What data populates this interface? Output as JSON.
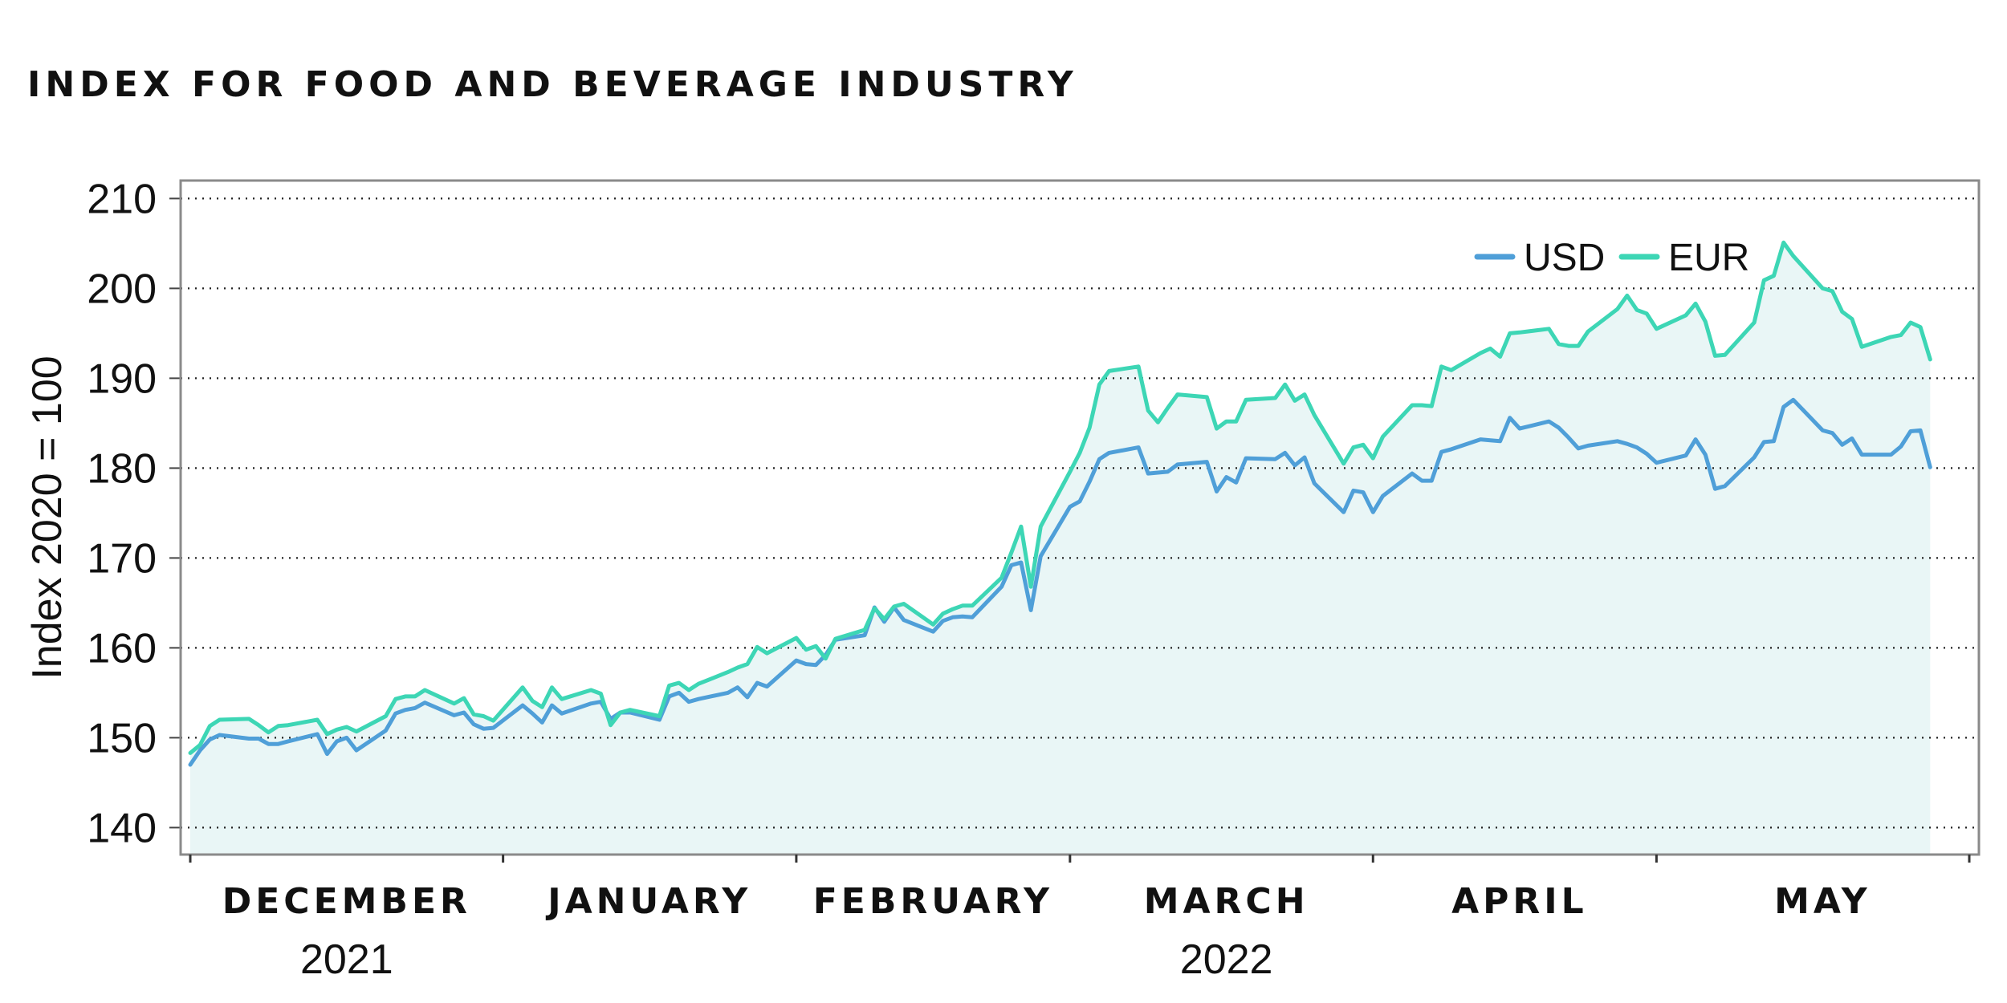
{
  "title": "INDEX FOR FOOD AND BEVERAGE INDUSTRY",
  "colors": {
    "USD": "#4f9fd8",
    "EUR": "#3dd6b5",
    "fill": "#e9f6f6"
  },
  "chart_data": {
    "type": "line",
    "title": "INDEX FOR FOOD AND BEVERAGE INDUSTRY",
    "ylabel": "Index 2020 = 100",
    "xlabel": "",
    "ylim": [
      137,
      212
    ],
    "yticks": [
      140,
      150,
      160,
      170,
      180,
      190,
      200,
      210
    ],
    "grid": true,
    "legend_position": "top-right",
    "x_start": "2021-11-30",
    "x_end": "2022-05-31",
    "month_labels": [
      {
        "label": "DECEMBER",
        "date": "2021-12-16"
      },
      {
        "label": "JANUARY",
        "date": "2022-01-16"
      },
      {
        "label": "FEBRUARY",
        "date": "2022-02-14"
      },
      {
        "label": "MARCH",
        "date": "2022-03-16"
      },
      {
        "label": "APRIL",
        "date": "2022-04-15"
      },
      {
        "label": "MAY",
        "date": "2022-05-16"
      }
    ],
    "month_boundaries": [
      "2021-11-30",
      "2022-01-01",
      "2022-01-31",
      "2022-02-28",
      "2022-03-31",
      "2022-04-29",
      "2022-05-31"
    ],
    "year_labels": [
      {
        "label": "2021",
        "date": "2021-12-16"
      },
      {
        "label": "2022",
        "date": "2022-03-16"
      }
    ],
    "series": [
      {
        "name": "USD",
        "color": "#4f9fd8",
        "points": [
          [
            "2021-11-30",
            147.0
          ],
          [
            "2021-12-01",
            148.6
          ],
          [
            "2021-12-02",
            149.8
          ],
          [
            "2021-12-03",
            150.3
          ],
          [
            "2021-12-06",
            149.9
          ],
          [
            "2021-12-07",
            149.9
          ],
          [
            "2021-12-08",
            149.3
          ],
          [
            "2021-12-09",
            149.3
          ],
          [
            "2021-12-10",
            149.6
          ],
          [
            "2021-12-13",
            150.4
          ],
          [
            "2021-12-14",
            148.2
          ],
          [
            "2021-12-15",
            149.6
          ],
          [
            "2021-12-16",
            150.0
          ],
          [
            "2021-12-17",
            148.6
          ],
          [
            "2021-12-20",
            150.8
          ],
          [
            "2021-12-21",
            152.7
          ],
          [
            "2021-12-22",
            153.1
          ],
          [
            "2021-12-23",
            153.3
          ],
          [
            "2021-12-24",
            153.9
          ],
          [
            "2021-12-27",
            152.5
          ],
          [
            "2021-12-28",
            152.8
          ],
          [
            "2021-12-29",
            151.5
          ],
          [
            "2021-12-30",
            151.0
          ],
          [
            "2021-12-31",
            151.1
          ],
          [
            "2022-01-03",
            153.6
          ],
          [
            "2022-01-04",
            152.7
          ],
          [
            "2022-01-05",
            151.7
          ],
          [
            "2022-01-06",
            153.6
          ],
          [
            "2022-01-07",
            152.7
          ],
          [
            "2022-01-10",
            153.8
          ],
          [
            "2022-01-11",
            154.0
          ],
          [
            "2022-01-12",
            152.1
          ],
          [
            "2022-01-13",
            152.8
          ],
          [
            "2022-01-14",
            152.8
          ],
          [
            "2022-01-17",
            152.0
          ],
          [
            "2022-01-18",
            154.6
          ],
          [
            "2022-01-19",
            155.0
          ],
          [
            "2022-01-20",
            154.0
          ],
          [
            "2022-01-21",
            154.3
          ],
          [
            "2022-01-24",
            155.0
          ],
          [
            "2022-01-25",
            155.6
          ],
          [
            "2022-01-26",
            154.5
          ],
          [
            "2022-01-27",
            156.1
          ],
          [
            "2022-01-28",
            155.7
          ],
          [
            "2022-01-31",
            158.6
          ],
          [
            "2022-02-01",
            158.2
          ],
          [
            "2022-02-02",
            158.1
          ],
          [
            "2022-02-03",
            159.2
          ],
          [
            "2022-02-04",
            160.9
          ],
          [
            "2022-02-07",
            161.4
          ],
          [
            "2022-02-08",
            164.5
          ],
          [
            "2022-02-09",
            162.9
          ],
          [
            "2022-02-10",
            164.5
          ],
          [
            "2022-02-11",
            163.1
          ],
          [
            "2022-02-14",
            161.8
          ],
          [
            "2022-02-15",
            163.0
          ],
          [
            "2022-02-16",
            163.4
          ],
          [
            "2022-02-17",
            163.5
          ],
          [
            "2022-02-18",
            163.4
          ],
          [
            "2022-02-21",
            166.8
          ],
          [
            "2022-02-22",
            169.2
          ],
          [
            "2022-02-23",
            169.5
          ],
          [
            "2022-02-24",
            164.2
          ],
          [
            "2022-02-25",
            170.2
          ],
          [
            "2022-02-28",
            175.7
          ],
          [
            "2022-03-01",
            176.3
          ],
          [
            "2022-03-02",
            178.5
          ],
          [
            "2022-03-03",
            181.0
          ],
          [
            "2022-03-04",
            181.7
          ],
          [
            "2022-03-07",
            182.3
          ],
          [
            "2022-03-08",
            179.4
          ],
          [
            "2022-03-09",
            179.5
          ],
          [
            "2022-03-10",
            179.6
          ],
          [
            "2022-03-11",
            180.4
          ],
          [
            "2022-03-14",
            180.7
          ],
          [
            "2022-03-15",
            177.4
          ],
          [
            "2022-03-16",
            179.0
          ],
          [
            "2022-03-17",
            178.4
          ],
          [
            "2022-03-18",
            181.1
          ],
          [
            "2022-03-21",
            181.0
          ],
          [
            "2022-03-22",
            181.7
          ],
          [
            "2022-03-23",
            180.3
          ],
          [
            "2022-03-24",
            181.2
          ],
          [
            "2022-03-25",
            178.3
          ],
          [
            "2022-03-28",
            175.1
          ],
          [
            "2022-03-29",
            177.5
          ],
          [
            "2022-03-30",
            177.3
          ],
          [
            "2022-03-31",
            175.1
          ],
          [
            "2022-04-01",
            176.9
          ],
          [
            "2022-04-04",
            179.4
          ],
          [
            "2022-04-05",
            178.6
          ],
          [
            "2022-04-06",
            178.6
          ],
          [
            "2022-04-07",
            181.8
          ],
          [
            "2022-04-08",
            182.1
          ],
          [
            "2022-04-11",
            183.2
          ],
          [
            "2022-04-12",
            183.1
          ],
          [
            "2022-04-13",
            183.0
          ],
          [
            "2022-04-14",
            185.6
          ],
          [
            "2022-04-15",
            184.4
          ],
          [
            "2022-04-18",
            185.2
          ],
          [
            "2022-04-19",
            184.5
          ],
          [
            "2022-04-20",
            183.4
          ],
          [
            "2022-04-21",
            182.2
          ],
          [
            "2022-04-22",
            182.5
          ],
          [
            "2022-04-25",
            183.0
          ],
          [
            "2022-04-26",
            182.7
          ],
          [
            "2022-04-27",
            182.3
          ],
          [
            "2022-04-28",
            181.6
          ],
          [
            "2022-04-29",
            180.6
          ],
          [
            "2022-05-02",
            181.4
          ],
          [
            "2022-05-03",
            183.2
          ],
          [
            "2022-05-04",
            181.5
          ],
          [
            "2022-05-05",
            177.7
          ],
          [
            "2022-05-06",
            178.0
          ],
          [
            "2022-05-09",
            181.2
          ],
          [
            "2022-05-10",
            182.9
          ],
          [
            "2022-05-11",
            183.0
          ],
          [
            "2022-05-12",
            186.8
          ],
          [
            "2022-05-13",
            187.6
          ],
          [
            "2022-05-16",
            184.2
          ],
          [
            "2022-05-17",
            183.9
          ],
          [
            "2022-05-18",
            182.6
          ],
          [
            "2022-05-19",
            183.3
          ],
          [
            "2022-05-20",
            181.5
          ],
          [
            "2022-05-23",
            181.5
          ],
          [
            "2022-05-24",
            182.4
          ],
          [
            "2022-05-25",
            184.1
          ],
          [
            "2022-05-26",
            184.2
          ],
          [
            "2022-05-27",
            180.1
          ]
        ]
      },
      {
        "name": "EUR",
        "color": "#3dd6b5",
        "points": [
          [
            "2021-11-30",
            148.3
          ],
          [
            "2021-12-01",
            149.2
          ],
          [
            "2021-12-02",
            151.3
          ],
          [
            "2021-12-03",
            152.0
          ],
          [
            "2021-12-06",
            152.1
          ],
          [
            "2021-12-07",
            151.4
          ],
          [
            "2021-12-08",
            150.6
          ],
          [
            "2021-12-09",
            151.3
          ],
          [
            "2021-12-10",
            151.4
          ],
          [
            "2021-12-13",
            152.0
          ],
          [
            "2021-12-14",
            150.4
          ],
          [
            "2021-12-15",
            150.9
          ],
          [
            "2021-12-16",
            151.2
          ],
          [
            "2021-12-17",
            150.7
          ],
          [
            "2021-12-20",
            152.4
          ],
          [
            "2021-12-21",
            154.3
          ],
          [
            "2021-12-22",
            154.6
          ],
          [
            "2021-12-23",
            154.6
          ],
          [
            "2021-12-24",
            155.3
          ],
          [
            "2021-12-27",
            153.8
          ],
          [
            "2021-12-28",
            154.4
          ],
          [
            "2021-12-29",
            152.6
          ],
          [
            "2021-12-30",
            152.4
          ],
          [
            "2021-12-31",
            151.9
          ],
          [
            "2022-01-03",
            155.6
          ],
          [
            "2022-01-04",
            154.1
          ],
          [
            "2022-01-05",
            153.4
          ],
          [
            "2022-01-06",
            155.6
          ],
          [
            "2022-01-07",
            154.3
          ],
          [
            "2022-01-10",
            155.3
          ],
          [
            "2022-01-11",
            154.9
          ],
          [
            "2022-01-12",
            151.4
          ],
          [
            "2022-01-13",
            152.8
          ],
          [
            "2022-01-14",
            153.1
          ],
          [
            "2022-01-17",
            152.4
          ],
          [
            "2022-01-18",
            155.8
          ],
          [
            "2022-01-19",
            156.1
          ],
          [
            "2022-01-20",
            155.3
          ],
          [
            "2022-01-21",
            156.0
          ],
          [
            "2022-01-24",
            157.3
          ],
          [
            "2022-01-25",
            157.8
          ],
          [
            "2022-01-26",
            158.2
          ],
          [
            "2022-01-27",
            160.1
          ],
          [
            "2022-01-28",
            159.4
          ],
          [
            "2022-01-31",
            161.1
          ],
          [
            "2022-02-01",
            159.8
          ],
          [
            "2022-02-02",
            160.2
          ],
          [
            "2022-02-03",
            158.8
          ],
          [
            "2022-02-04",
            161.0
          ],
          [
            "2022-02-07",
            162.0
          ],
          [
            "2022-02-08",
            164.4
          ],
          [
            "2022-02-09",
            163.2
          ],
          [
            "2022-02-10",
            164.6
          ],
          [
            "2022-02-11",
            164.9
          ],
          [
            "2022-02-14",
            162.6
          ],
          [
            "2022-02-15",
            163.8
          ],
          [
            "2022-02-16",
            164.3
          ],
          [
            "2022-02-17",
            164.7
          ],
          [
            "2022-02-18",
            164.7
          ],
          [
            "2022-02-21",
            167.8
          ],
          [
            "2022-02-22",
            170.6
          ],
          [
            "2022-02-23",
            173.5
          ],
          [
            "2022-02-24",
            166.8
          ],
          [
            "2022-02-25",
            173.5
          ],
          [
            "2022-02-28",
            179.6
          ],
          [
            "2022-03-01",
            181.7
          ],
          [
            "2022-03-02",
            184.5
          ],
          [
            "2022-03-03",
            189.3
          ],
          [
            "2022-03-04",
            190.8
          ],
          [
            "2022-03-07",
            191.3
          ],
          [
            "2022-03-08",
            186.4
          ],
          [
            "2022-03-09",
            185.1
          ],
          [
            "2022-03-10",
            186.7
          ],
          [
            "2022-03-11",
            188.2
          ],
          [
            "2022-03-14",
            187.9
          ],
          [
            "2022-03-15",
            184.4
          ],
          [
            "2022-03-16",
            185.2
          ],
          [
            "2022-03-17",
            185.2
          ],
          [
            "2022-03-18",
            187.6
          ],
          [
            "2022-03-21",
            187.8
          ],
          [
            "2022-03-22",
            189.3
          ],
          [
            "2022-03-23",
            187.5
          ],
          [
            "2022-03-24",
            188.2
          ],
          [
            "2022-03-25",
            185.9
          ],
          [
            "2022-03-28",
            180.5
          ],
          [
            "2022-03-29",
            182.3
          ],
          [
            "2022-03-30",
            182.6
          ],
          [
            "2022-03-31",
            181.1
          ],
          [
            "2022-04-01",
            183.5
          ],
          [
            "2022-04-04",
            187.0
          ],
          [
            "2022-04-05",
            187.0
          ],
          [
            "2022-04-06",
            186.9
          ],
          [
            "2022-04-07",
            191.3
          ],
          [
            "2022-04-08",
            190.9
          ],
          [
            "2022-04-11",
            192.8
          ],
          [
            "2022-04-12",
            193.3
          ],
          [
            "2022-04-13",
            192.4
          ],
          [
            "2022-04-14",
            195.0
          ],
          [
            "2022-04-15",
            195.1
          ],
          [
            "2022-04-18",
            195.5
          ],
          [
            "2022-04-19",
            193.8
          ],
          [
            "2022-04-20",
            193.6
          ],
          [
            "2022-04-21",
            193.6
          ],
          [
            "2022-04-22",
            195.2
          ],
          [
            "2022-04-25",
            197.7
          ],
          [
            "2022-04-26",
            199.2
          ],
          [
            "2022-04-27",
            197.6
          ],
          [
            "2022-04-28",
            197.2
          ],
          [
            "2022-04-29",
            195.5
          ],
          [
            "2022-05-02",
            197.0
          ],
          [
            "2022-05-03",
            198.3
          ],
          [
            "2022-05-04",
            196.3
          ],
          [
            "2022-05-05",
            192.5
          ],
          [
            "2022-05-06",
            192.6
          ],
          [
            "2022-05-09",
            196.2
          ],
          [
            "2022-05-10",
            200.9
          ],
          [
            "2022-05-11",
            201.4
          ],
          [
            "2022-05-12",
            205.1
          ],
          [
            "2022-05-13",
            203.6
          ],
          [
            "2022-05-16",
            200.0
          ],
          [
            "2022-05-17",
            199.7
          ],
          [
            "2022-05-18",
            197.4
          ],
          [
            "2022-05-19",
            196.6
          ],
          [
            "2022-05-20",
            193.5
          ],
          [
            "2022-05-23",
            194.6
          ],
          [
            "2022-05-24",
            194.8
          ],
          [
            "2022-05-25",
            196.2
          ],
          [
            "2022-05-26",
            195.7
          ],
          [
            "2022-05-27",
            192.1
          ]
        ]
      }
    ]
  }
}
